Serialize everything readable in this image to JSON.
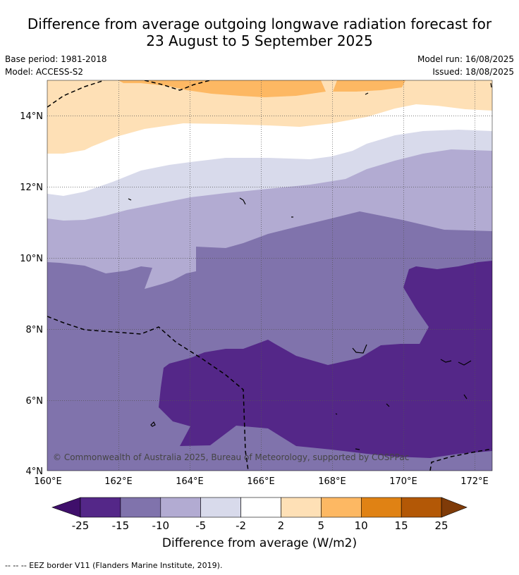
{
  "header": {
    "title_line1": "Difference from average outgoing longwave radiation forecast for",
    "title_line2": "23 August to 5 September 2025",
    "base_period": "Base period: 1981-2018",
    "model": "Model: ACCESS-S2",
    "model_run": "Model run: 16/08/2025",
    "issued": "Issued: 18/08/2025"
  },
  "map": {
    "lon_ticks": [
      "160°E",
      "162°E",
      "164°E",
      "166°E",
      "168°E",
      "170°E",
      "172°E"
    ],
    "lat_ticks": [
      "14°N",
      "12°N",
      "10°N",
      "8°N",
      "6°N",
      "4°N"
    ],
    "copyright": "© Commonwealth of Australia 2025, Bureau of Meteorology, supported by COSPPac"
  },
  "colorbar": {
    "labels": [
      "-25",
      "-15",
      "-10",
      "-5",
      "-2",
      "2",
      "5",
      "10",
      "15",
      "25"
    ],
    "colors": [
      "#3f0f6b",
      "#542788",
      "#8073ac",
      "#b2abd2",
      "#d8daeb",
      "#ffffff",
      "#fee0b6",
      "#fdb863",
      "#e08214",
      "#b35806",
      "#7f3b08"
    ],
    "title": "Difference from average (W/m2)"
  },
  "legend": {
    "eez": "--  --  -- EEZ border V11 (Flanders Marine Institute, 2019)."
  }
}
